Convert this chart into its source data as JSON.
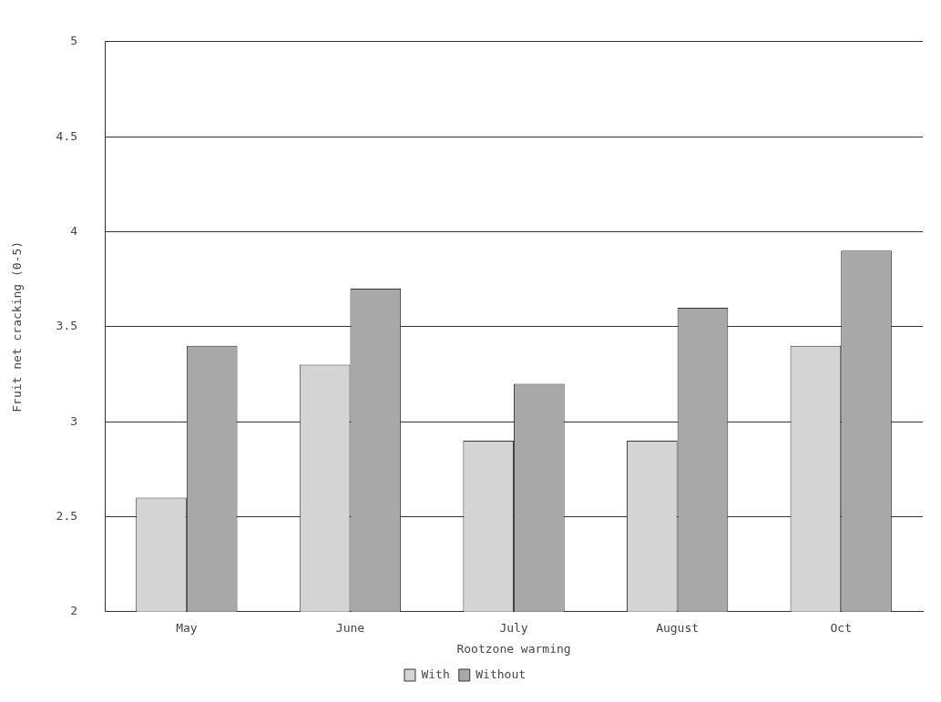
{
  "chart_data": {
    "type": "bar",
    "xlabel": "Rootzone warming",
    "ylabel": "Fruit net cracking (0-5)",
    "categories": [
      "May",
      "June",
      "July",
      "August",
      "Oct"
    ],
    "series": [
      {
        "name": "With",
        "color": "#d4d4d4",
        "values": [
          2.6,
          3.3,
          2.9,
          2.9,
          3.4
        ]
      },
      {
        "name": "Without",
        "color": "#a8a8a8",
        "values": [
          3.4,
          3.7,
          3.2,
          3.6,
          3.9
        ]
      }
    ],
    "ylim": [
      2,
      5
    ],
    "yticks": [
      2,
      2.5,
      3,
      3.5,
      4,
      4.5,
      5
    ],
    "grid": "y",
    "legend": "bottom"
  }
}
